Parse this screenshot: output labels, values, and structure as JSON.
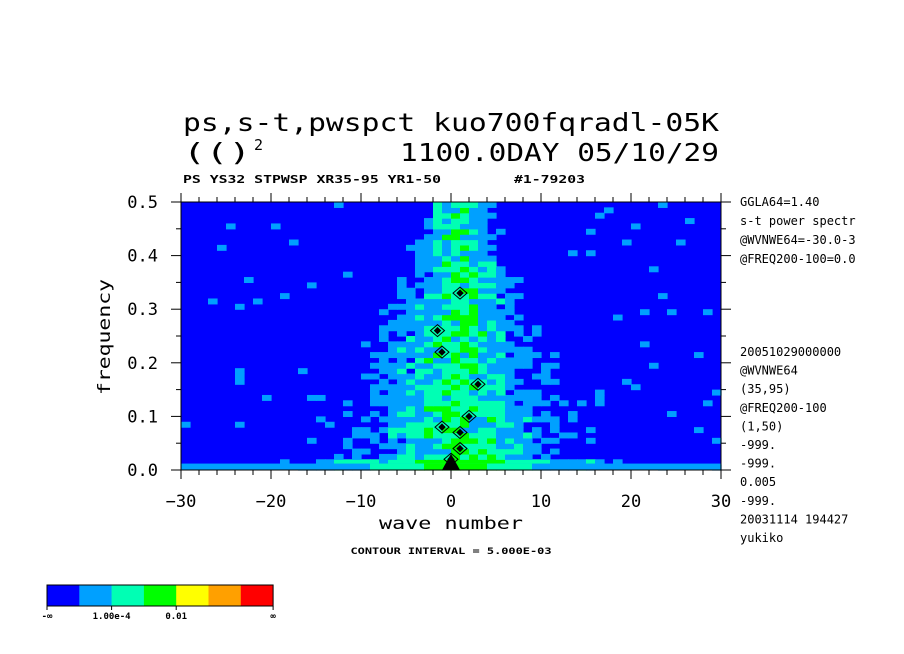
{
  "chart_data": {
    "type": "heatmap",
    "title_line1": "ps,s-t,pwspct kuo700fqradl-05K",
    "title_line2_left": "(()",
    "title_line2_sup": "2",
    "title_line2_right": "1100.0DAY 05/10/29",
    "subtitle_left": "PS YS32 STPWSP XR35-95 YR1-50",
    "subtitle_right": "#1-79203",
    "xlabel": "wave number",
    "ylabel": "frequency",
    "xlim": [
      -30,
      30
    ],
    "ylim": [
      0.0,
      0.5
    ],
    "x_ticks": [
      -30,
      -20,
      -10,
      0,
      10,
      20,
      30
    ],
    "x_tick_labels": [
      "−30",
      "−20",
      "−10",
      "0",
      "10",
      "20",
      "30"
    ],
    "y_ticks": [
      0.0,
      0.1,
      0.2,
      0.3,
      0.4,
      0.5
    ],
    "y_tick_labels": [
      "0.0",
      "0.1",
      "0.2",
      "0.3",
      "0.4",
      "0.5"
    ],
    "contour_interval": "CONTOUR INTERVAL = 5.000E-03",
    "side_notes_top": [
      "GGLA64=1.40",
      "s-t power spectr",
      "@WVNWE64=-30.0-3",
      "@FREQ200-100=0.0"
    ],
    "side_notes_bottom": [
      "20051029000000",
      "@WVNWE64",
      "(35,95)",
      "@FREQ200-100",
      "(1,50)",
      "-999.",
      "-999.",
      "0.005",
      "-999.",
      "20031114 194427",
      "yukiko"
    ],
    "colorbar": {
      "colors": [
        "#0000ff",
        "#00a0ff",
        "#00ffb4",
        "#00ff00",
        "#ffff00",
        "#ffa000",
        "#ff0000"
      ],
      "labels": [
        "-∞",
        "1.00e-4",
        "0.01",
        "∞"
      ]
    },
    "band_half_width": [
      [
        0.0,
        7.5
      ],
      [
        0.05,
        8.0
      ],
      [
        0.1,
        7.8
      ],
      [
        0.15,
        7.2
      ],
      [
        0.2,
        6.5
      ],
      [
        0.25,
        5.8
      ],
      [
        0.3,
        5.0
      ],
      [
        0.35,
        4.2
      ],
      [
        0.4,
        3.5
      ],
      [
        0.45,
        2.8
      ],
      [
        0.5,
        2.6
      ]
    ],
    "contour_peaks": [
      {
        "x": 1.0,
        "y": 0.33
      },
      {
        "x": -1.5,
        "y": 0.26
      },
      {
        "x": -1.0,
        "y": 0.22
      },
      {
        "x": 3.0,
        "y": 0.16
      },
      {
        "x": 2.0,
        "y": 0.1
      },
      {
        "x": -1.0,
        "y": 0.08
      },
      {
        "x": 1.0,
        "y": 0.07
      },
      {
        "x": 1.0,
        "y": 0.04
      },
      {
        "x": 0.0,
        "y": 0.02
      }
    ]
  }
}
